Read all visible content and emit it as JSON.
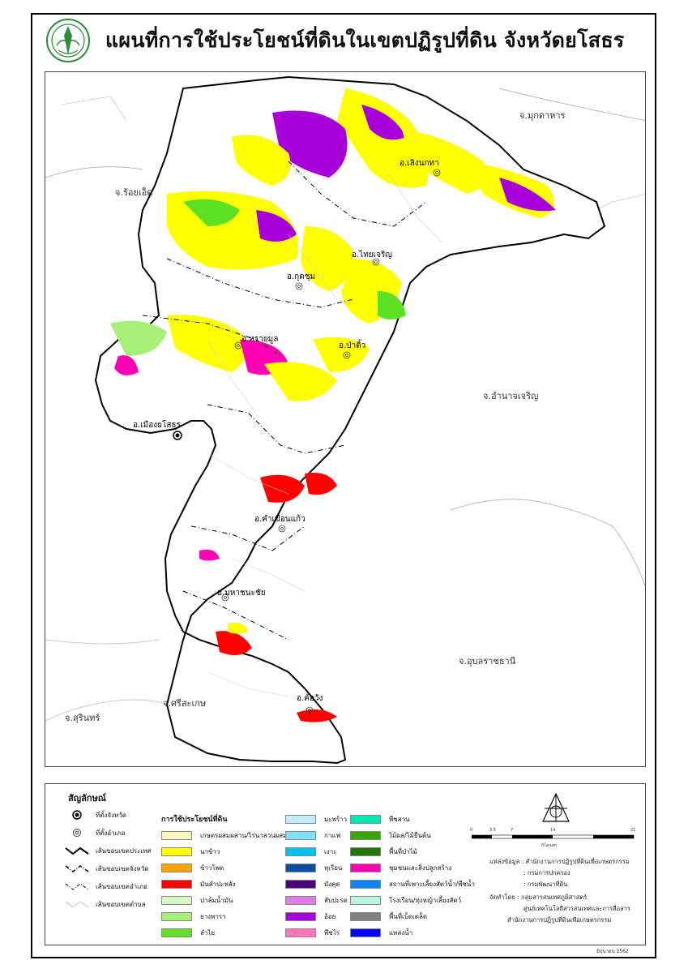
{
  "title": "แผนที่การใช้ประโยชน์ที่ดินในเขตปฏิรูปที่ดิน จังหวัดยโสธร",
  "map": {
    "neighbor_labels": [
      {
        "name": "จ.มุกดาหาร"
      },
      {
        "name": "จ.ร้อยเอ็ด"
      },
      {
        "name": "จ.อำนาจเจริญ"
      },
      {
        "name": "จ.อุบลราชธานี"
      },
      {
        "name": "จ.ศรีสะเกษ"
      },
      {
        "name": "จ.สุรินทร์"
      }
    ],
    "district_labels": [
      {
        "name": "อ.เลิงนกทา"
      },
      {
        "name": "อ.ไทยเจริญ"
      },
      {
        "name": "อ.กุดชุม"
      },
      {
        "name": "อ.ทรายมูล"
      },
      {
        "name": "อ.ป่าติ้ว"
      },
      {
        "name": "อ.เมืองยโสธร"
      },
      {
        "name": "อ.คำเขื่อนแก้ว"
      },
      {
        "name": "อ.มหาชนะชัย"
      },
      {
        "name": "อ.ค้อวัง"
      }
    ]
  },
  "legend": {
    "title": "สัญลักษณ์",
    "symbols": [
      {
        "icon": "province-seat-icon",
        "label": "ที่ตั้งจังหวัด"
      },
      {
        "icon": "district-seat-icon",
        "label": "ที่ตั้งอำเภอ"
      },
      {
        "icon": "country-boundary-icon",
        "label": "เส้นขอบเขตประเทศ"
      },
      {
        "icon": "province-boundary-icon",
        "label": "เส้นขอบเขตจังหวัด"
      },
      {
        "icon": "district-boundary-icon",
        "label": "เส้นขอบเขตอำเภอ"
      },
      {
        "icon": "subdistrict-boundary-icon",
        "label": "เส้นขอบเขตตำบล"
      }
    ],
    "landuse_heading": "การใช้ประโยชน์ที่ดิน",
    "landuse_col1": [
      {
        "label": "เกษตรผสมผสาน/ไร่นาสวนผสม",
        "color": "#fdf8c0"
      },
      {
        "label": "นาข้าว",
        "color": "#ffff00"
      },
      {
        "label": "ข้าวโพด",
        "color": "#ffa500"
      },
      {
        "label": "มันสำปะหลัง",
        "color": "#ff0000"
      },
      {
        "label": "ปาล์มน้ำมัน",
        "color": "#d9f7c4"
      },
      {
        "label": "ยางพารา",
        "color": "#a6f07a"
      },
      {
        "label": "ลำไย",
        "color": "#5ee025"
      }
    ],
    "landuse_col2": [
      {
        "label": "มะพร้าว",
        "color": "#c0ecfc"
      },
      {
        "label": "กาแฟ",
        "color": "#7fe0f8"
      },
      {
        "label": "เงาะ",
        "color": "#00c0ee"
      },
      {
        "label": "ทุเรียน",
        "color": "#0a4ea0"
      },
      {
        "label": "มังคุด",
        "color": "#4a007a"
      },
      {
        "label": "สับปะรด",
        "color": "#e07ee8"
      },
      {
        "label": "อ้อย",
        "color": "#a800d8"
      },
      {
        "label": "พืชไร่",
        "color": "#ff77bb"
      }
    ],
    "landuse_col3": [
      {
        "label": "พืชสวน",
        "color": "#00e6b4"
      },
      {
        "label": "ไม้ผล/ไม้ยืนต้น",
        "color": "#38a800"
      },
      {
        "label": "พื้นที่ป่าไม้",
        "color": "#267300"
      },
      {
        "label": "ชุมชนและสิ่งปลูกสร้าง",
        "color": "#ff00b4"
      },
      {
        "label": "สถานที่เพาะเลี้ยงสัตว์น้ำ/พืชน้ำ",
        "color": "#0a84ff"
      },
      {
        "label": "โรงเรือน/ทุ่งหญ้าเลี้ยงสัตว์",
        "color": "#b8f5dc"
      },
      {
        "label": "พื้นที่เบ็ดเตล็ด",
        "color": "#808080"
      },
      {
        "label": "แหล่งน้ำ",
        "color": "#0000ff"
      }
    ],
    "source_lines": [
      "แหล่งข้อมูล : สำนักงานการปฏิรูปที่ดินเพื่อเกษตรกรรม",
      ": กรมการปกครอง",
      ": กรมพัฒนาที่ดิน",
      "จัดทำโดย : กลุ่มสารสนเทศภูมิศาสตร์",
      "ศูนย์เทคโนโลยีสารสนเทศและการสื่อสาร",
      "สำนักงานการปฏิรูปที่ดินเพื่อเกษตรกรรม"
    ],
    "scale_unit": "กิโลเมตร",
    "scale_ticks": [
      "0",
      "3.5",
      "7",
      "14",
      "21"
    ],
    "date": "มิถุนายน 2562"
  }
}
